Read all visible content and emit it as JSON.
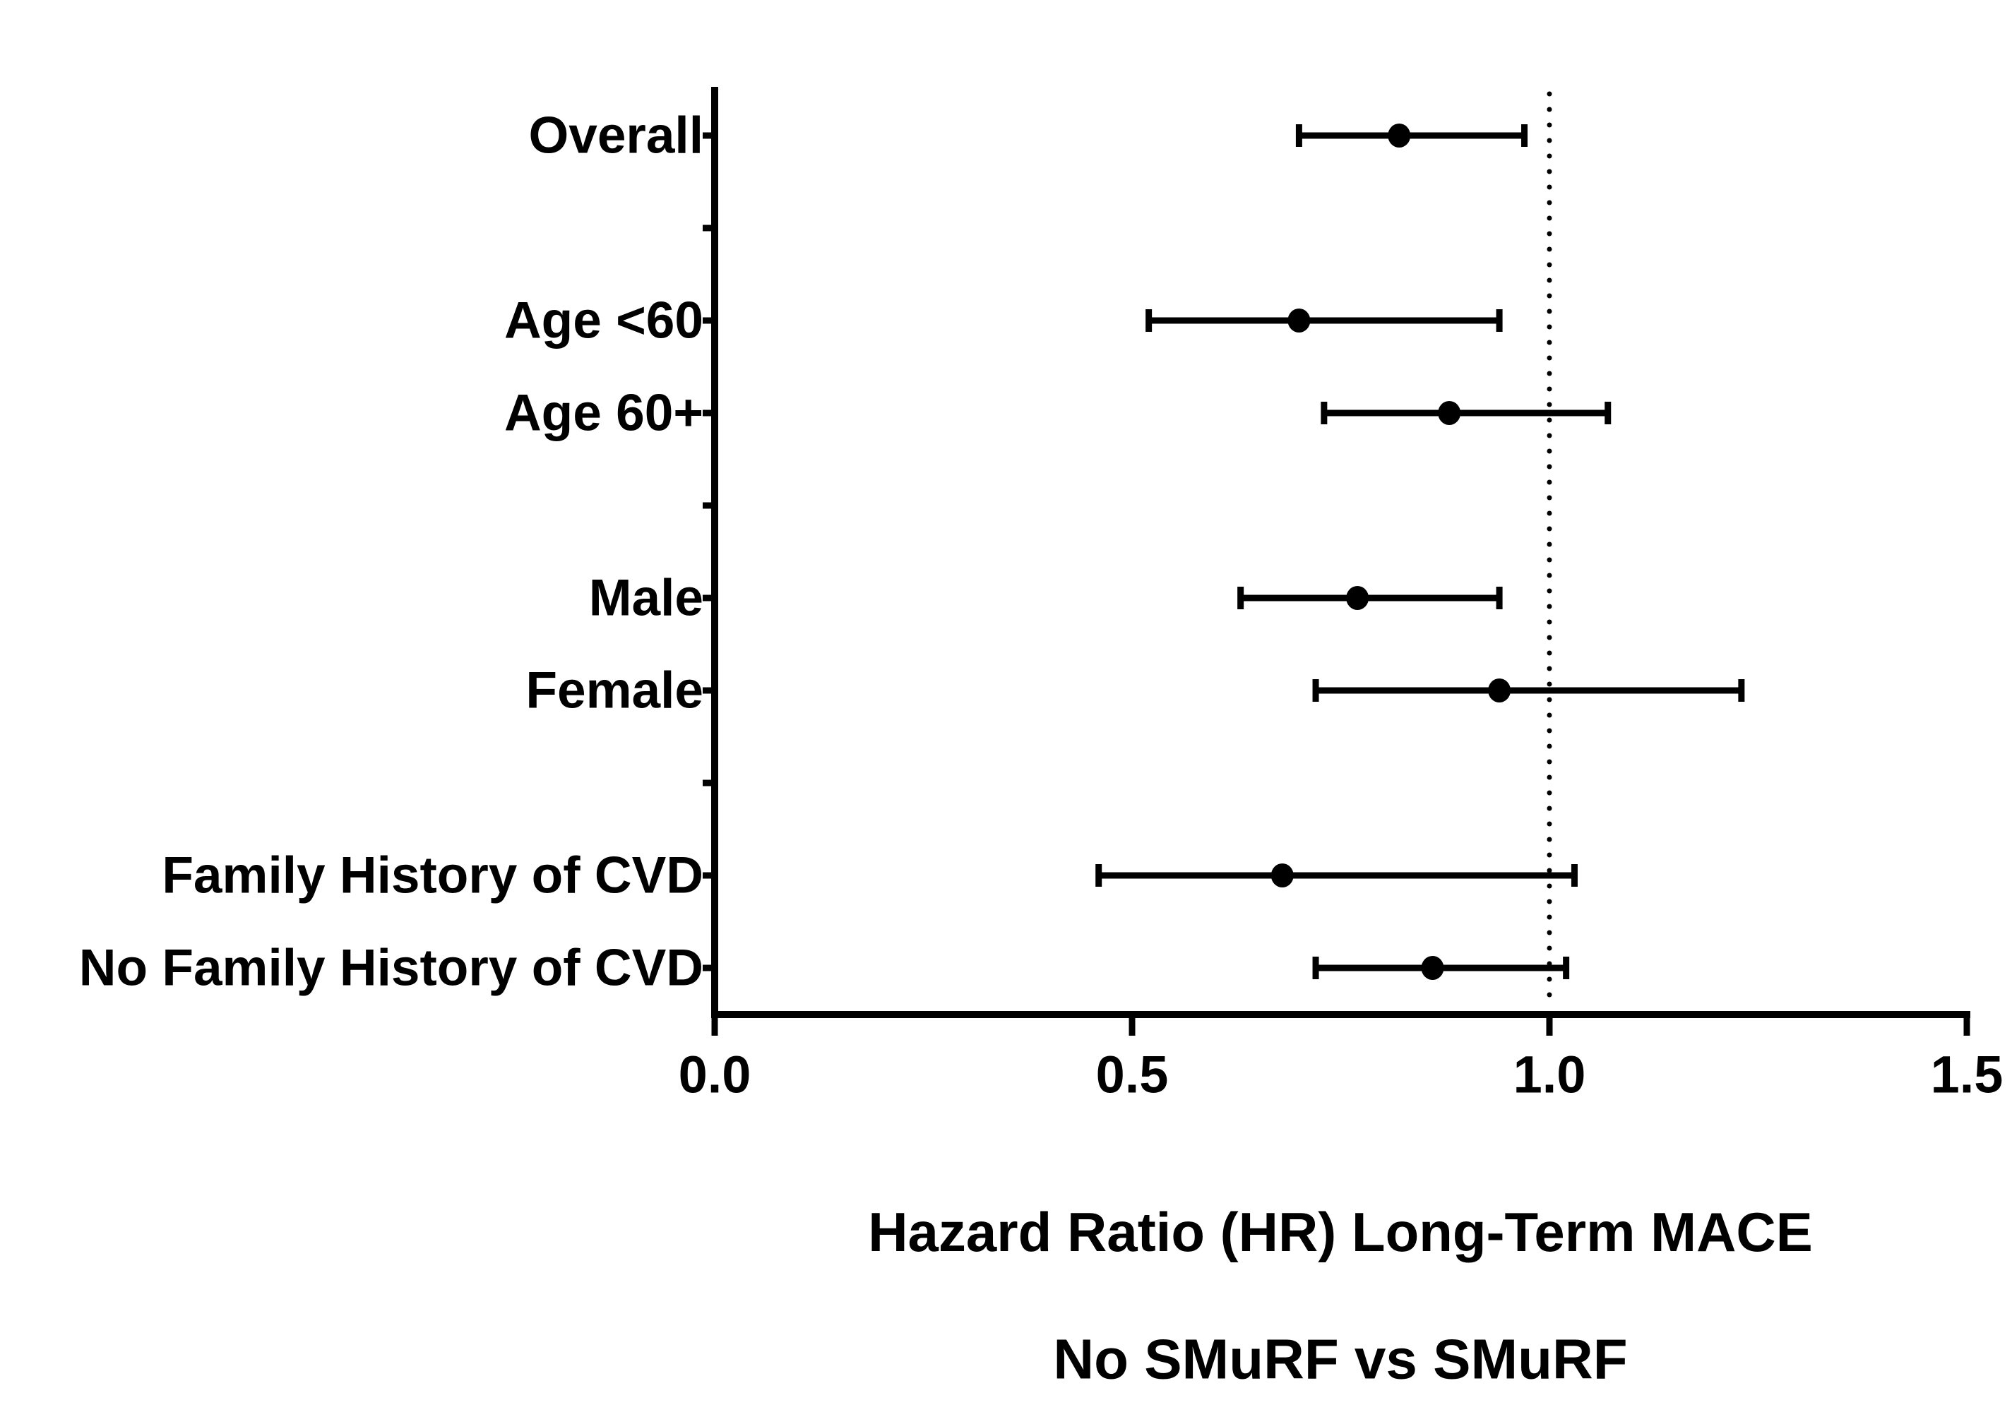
{
  "chart_data": {
    "type": "forest",
    "title": "",
    "xlabel": "Hazard Ratio (HR) Long-Term MACE",
    "xlabel2": "No SMuRF vs SMuRF",
    "xlim": [
      0.0,
      1.5
    ],
    "x_ticks": [
      0.0,
      0.5,
      1.0,
      1.5
    ],
    "x_tick_labels": [
      "0.0",
      "0.5",
      "1.0",
      "1.5"
    ],
    "reference_line": 1.0,
    "reference_line_style": "dotted",
    "grid": false,
    "legend": "none",
    "rows": [
      {
        "label": "Overall",
        "hr": 0.82,
        "lo": 0.7,
        "hi": 0.97
      },
      {
        "label": "",
        "hr": null,
        "lo": null,
        "hi": null
      },
      {
        "label": "Age <60",
        "hr": 0.7,
        "lo": 0.52,
        "hi": 0.94
      },
      {
        "label": "Age 60+",
        "hr": 0.88,
        "lo": 0.73,
        "hi": 1.07
      },
      {
        "label": "",
        "hr": null,
        "lo": null,
        "hi": null
      },
      {
        "label": "Male",
        "hr": 0.77,
        "lo": 0.63,
        "hi": 0.94
      },
      {
        "label": "Female",
        "hr": 0.94,
        "lo": 0.72,
        "hi": 1.23
      },
      {
        "label": "",
        "hr": null,
        "lo": null,
        "hi": null
      },
      {
        "label": "Family History of CVD",
        "hr": 0.68,
        "lo": 0.46,
        "hi": 1.03
      },
      {
        "label": "No Family History of CVD",
        "hr": 0.86,
        "lo": 0.72,
        "hi": 1.02
      }
    ],
    "colors": {
      "ink": "#000000",
      "background": "#ffffff"
    }
  }
}
